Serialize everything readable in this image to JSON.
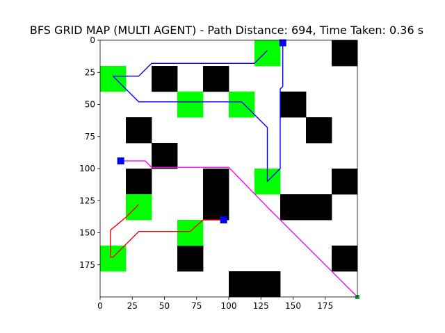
{
  "chart_data": {
    "type": "heatmap",
    "title": "BFS GRID MAP (MULTI AGENT) - Path Distance: 694, Time Taken: 0.36 s",
    "xlabel": "",
    "ylabel": "",
    "xlim": [
      0,
      200
    ],
    "ylim": [
      200,
      0
    ],
    "x_ticks": [
      0,
      25,
      50,
      75,
      100,
      125,
      150,
      175
    ],
    "y_ticks": [
      0,
      25,
      50,
      75,
      100,
      125,
      150,
      175
    ],
    "grid": false,
    "colors": {
      "free": "#ffffff",
      "obstacle": "#000000",
      "goal": "#00ff00",
      "start_marker": "#0000ff",
      "end_marker": "#2ca02c"
    },
    "obstacles": [
      [
        180,
        0,
        20,
        20
      ],
      [
        40,
        20,
        20,
        20
      ],
      [
        80,
        20,
        20,
        20
      ],
      [
        140,
        40,
        20,
        20
      ],
      [
        20,
        60,
        20,
        20
      ],
      [
        160,
        60,
        20,
        20
      ],
      [
        40,
        80,
        20,
        20
      ],
      [
        20,
        100,
        20,
        20
      ],
      [
        80,
        100,
        20,
        40
      ],
      [
        180,
        100,
        20,
        20
      ],
      [
        140,
        120,
        40,
        20
      ],
      [
        60,
        160,
        20,
        20
      ],
      [
        180,
        160,
        20,
        20
      ],
      [
        100,
        180,
        40,
        20
      ]
    ],
    "goals": [
      [
        120,
        0,
        20,
        20
      ],
      [
        0,
        20,
        20,
        20
      ],
      [
        60,
        40,
        20,
        20
      ],
      [
        100,
        40,
        20,
        20
      ],
      [
        120,
        100,
        20,
        20
      ],
      [
        20,
        120,
        20,
        20
      ],
      [
        60,
        140,
        20,
        20
      ],
      [
        0,
        160,
        20,
        20
      ]
    ],
    "series": [
      {
        "color": "#0000ff",
        "points": [
          [
            142,
            2
          ],
          [
            142,
            4
          ],
          [
            142,
            36
          ],
          [
            140,
            38
          ],
          [
            140,
            100
          ],
          [
            130,
            110
          ],
          [
            130,
            68
          ],
          [
            130,
            68
          ],
          [
            110,
            48
          ],
          [
            30,
            48
          ],
          [
            10,
            28
          ],
          [
            30,
            28
          ],
          [
            40,
            18
          ],
          [
            120,
            18
          ],
          [
            130,
            8
          ]
        ]
      },
      {
        "color": "#ff00ff",
        "points": [
          [
            16,
            94
          ],
          [
            35,
            94
          ],
          [
            38,
            97
          ],
          [
            40,
            99
          ],
          [
            100,
            99
          ],
          [
            130,
            130
          ],
          [
            140,
            140
          ],
          [
            200,
            200
          ]
        ]
      },
      {
        "color": "#ff0000",
        "points": [
          [
            96,
            140
          ],
          [
            80,
            140
          ],
          [
            70,
            149
          ],
          [
            30,
            149
          ],
          [
            10,
            169
          ],
          [
            8,
            169
          ],
          [
            8,
            148
          ],
          [
            20,
            138
          ],
          [
            30,
            128
          ]
        ]
      }
    ],
    "markers": [
      {
        "x": 142,
        "y": 2,
        "color": "#0000ff"
      },
      {
        "x": 16,
        "y": 94,
        "color": "#0000ff"
      },
      {
        "x": 96,
        "y": 140,
        "color": "#0000ff"
      },
      {
        "x": 200,
        "y": 200,
        "color": "#2ca02c"
      }
    ]
  }
}
